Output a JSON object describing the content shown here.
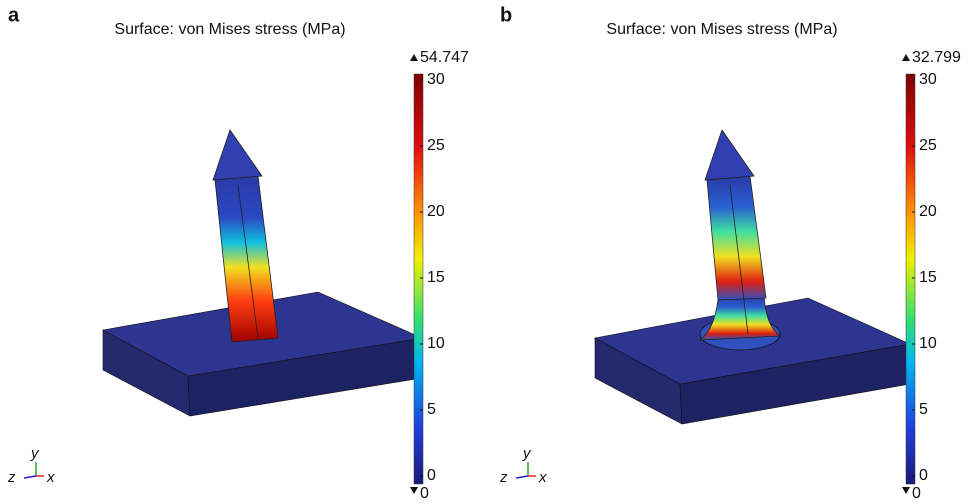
{
  "panels": [
    {
      "label": "a",
      "title": "Surface: von Mises stress (MPa)",
      "max": "54.747",
      "min": "0",
      "colorbar_ticks": [
        "30",
        "25",
        "20",
        "15",
        "10",
        "5",
        "0"
      ],
      "axes": {
        "y": "y",
        "z": "z",
        "x": "x"
      }
    },
    {
      "label": "b",
      "title": "Surface: von Mises stress (MPa)",
      "max": "32.799",
      "min": "0",
      "colorbar_ticks": [
        "30",
        "25",
        "20",
        "15",
        "10",
        "5",
        "0"
      ],
      "axes": {
        "y": "y",
        "z": "z",
        "x": "x"
      }
    }
  ]
}
